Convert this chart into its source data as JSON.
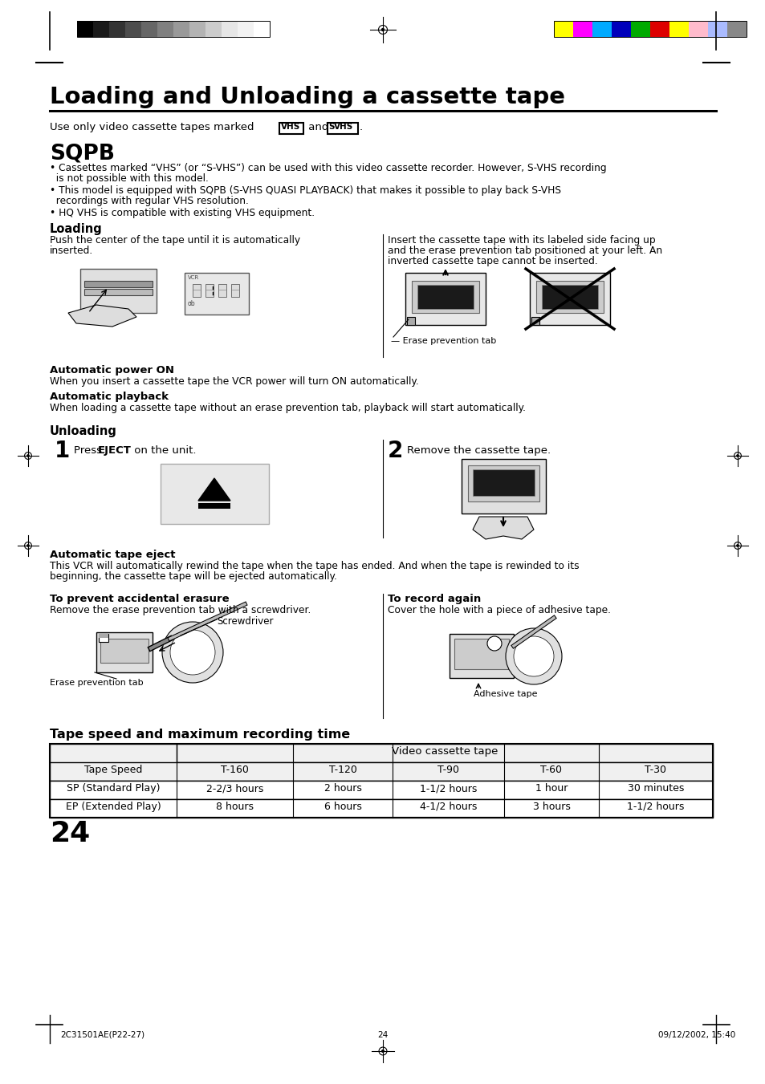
{
  "bg_color": "#ffffff",
  "page_number": "24",
  "footer_left": "2C31501AE(P22-27)",
  "footer_center": "24",
  "footer_right": "09/12/2002, 15:40",
  "main_title": "Loading and Unloading a cassette tape",
  "subtitle_pre": "Use only video cassette tapes marked",
  "sqpb_title": "SQPB",
  "bullet1": "Cassettes marked “VHS” (or “S-VHS”) can be used with this video cassette recorder. However, S-VHS recording",
  "bullet1b": "  is not possible with this model.",
  "bullet2": "This model is equipped with SQPB (S-VHS QUASI PLAYBACK) that makes it possible to play back S-VHS",
  "bullet2b": "  recordings with regular VHS resolution.",
  "bullet3": "HQ VHS is compatible with existing VHS equipment.",
  "loading_title": "Loading",
  "loading_left1": "Push the center of the tape until it is automatically",
  "loading_left2": "inserted.",
  "loading_right1": "Insert the cassette tape with its labeled side facing up",
  "loading_right2": "and the erase prevention tab positioned at your left. An",
  "loading_right3": "inverted cassette tape cannot be inserted.",
  "erase_tab_label": "Erase prevention tab",
  "auto_power_title": "Automatic power ON",
  "auto_power_text": "When you insert a cassette tape the VCR power will turn ON automatically.",
  "auto_playback_title": "Automatic playback",
  "auto_playback_text": "When loading a cassette tape without an erase prevention tab, playback will start automatically.",
  "unloading_title": "Unloading",
  "step2_text": "Remove the cassette tape.",
  "auto_eject_title": "Automatic tape eject",
  "auto_eject_text1": "This VCR will automatically rewind the tape when the tape has ended. And when the tape is rewinded to its",
  "auto_eject_text2": "beginning, the cassette tape will be ejected automatically.",
  "prevent_title": "To prevent accidental erasure",
  "prevent_text": "Remove the erase prevention tab with a screwdriver.",
  "prevent_label1": "Screwdriver",
  "prevent_label2": "Erase prevention tab",
  "record_title": "To record again",
  "record_text": "Cover the hole with a piece of adhesive tape.",
  "record_label": "Adhesive tape",
  "table_title": "Tape speed and maximum recording time",
  "table_header1": "Tape Speed",
  "table_header2": "Video cassette tape",
  "table_cols": [
    "T-160",
    "T-120",
    "T-90",
    "T-60",
    "T-30"
  ],
  "table_rows": [
    [
      "SP (Standard Play)",
      "2-2/3 hours",
      "2 hours",
      "1-1/2 hours",
      "1 hour",
      "30 minutes"
    ],
    [
      "EP (Extended Play)",
      "8 hours",
      "6 hours",
      "4-1/2 hours",
      "3 hours",
      "1-1/2 hours"
    ]
  ],
  "grayscale_colors": [
    "#000000",
    "#1a1a1a",
    "#333333",
    "#4d4d4d",
    "#666666",
    "#808080",
    "#999999",
    "#b3b3b3",
    "#cccccc",
    "#e6e6e6",
    "#f2f2f2",
    "#ffffff"
  ],
  "color_bars": [
    "#ffff00",
    "#ff00ff",
    "#00aaff",
    "#0000bb",
    "#00aa00",
    "#dd0000",
    "#ffff00",
    "#ffbbcc",
    "#aabbff",
    "#888888"
  ]
}
